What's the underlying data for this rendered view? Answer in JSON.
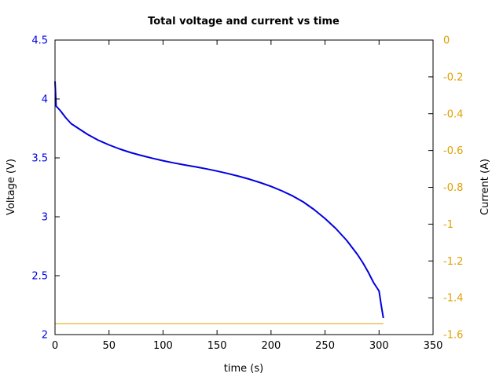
{
  "chart_data": {
    "type": "line",
    "title": "Total voltage and current vs time",
    "xlabel": "time (s)",
    "ylabel": "Voltage (V)",
    "y2label": "Current (A)",
    "xlim": [
      0,
      350
    ],
    "ylim": [
      2,
      4.5
    ],
    "y2lim": [
      -1.6,
      0
    ],
    "xticks": [
      0,
      50,
      100,
      150,
      200,
      250,
      300,
      350
    ],
    "yticks": [
      2,
      2.5,
      3,
      3.5,
      4,
      4.5
    ],
    "y2ticks": [
      0,
      -0.2,
      -0.4,
      -0.6,
      -0.8,
      -1,
      -1.2,
      -1.4,
      -1.6
    ],
    "grid": false,
    "colors": {
      "voltage": "#0000e0",
      "current": "#e0a000",
      "axis": "#000000"
    },
    "series": [
      {
        "axis": "left",
        "color": "#0000e0",
        "x": [
          0,
          0.5,
          1,
          5,
          10,
          15,
          20,
          30,
          40,
          50,
          60,
          70,
          80,
          90,
          100,
          110,
          120,
          130,
          140,
          150,
          160,
          170,
          180,
          190,
          200,
          210,
          220,
          230,
          240,
          250,
          260,
          270,
          280,
          285,
          290,
          295,
          300,
          302,
          304
        ],
        "values": [
          4.15,
          4.05,
          3.94,
          3.9,
          3.84,
          3.79,
          3.76,
          3.7,
          3.65,
          3.61,
          3.575,
          3.545,
          3.52,
          3.497,
          3.476,
          3.457,
          3.44,
          3.424,
          3.407,
          3.388,
          3.367,
          3.344,
          3.319,
          3.29,
          3.258,
          3.22,
          3.177,
          3.125,
          3.06,
          2.985,
          2.9,
          2.8,
          2.68,
          2.61,
          2.53,
          2.44,
          2.37,
          2.25,
          2.14
        ]
      },
      {
        "axis": "right",
        "color": "#e0a000",
        "x": [
          0,
          304
        ],
        "values": [
          -1.54,
          -1.54
        ]
      }
    ]
  }
}
